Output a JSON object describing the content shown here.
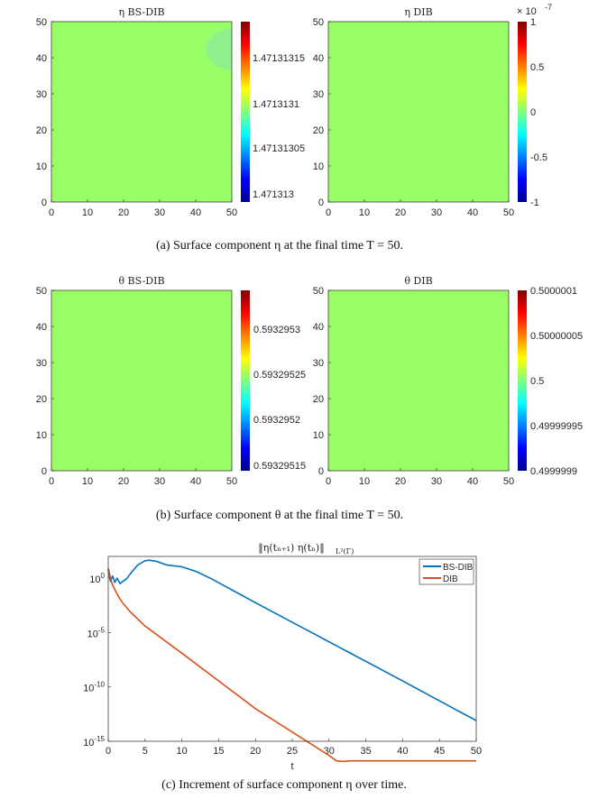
{
  "colors": {
    "field": "#99ff66",
    "field_patch": "#8ef08a",
    "bsdib_line": "#0072bd",
    "dib_line": "#d95319",
    "grid_text": "#262626"
  },
  "panel_a": {
    "caption": "(a)  Surface component η at the final time T = 50.",
    "left": {
      "title": "η BS-DIB",
      "colorbar_ticks": [
        "1.47131315",
        "1.4713131",
        "1.47131305",
        "1.471313"
      ]
    },
    "right": {
      "title": "η DIB",
      "exponent": "× 10",
      "exponent_power": "-7",
      "colorbar_ticks": [
        "1",
        "0.5",
        "0",
        "-0.5",
        "-1"
      ]
    }
  },
  "panel_b": {
    "caption": "(b)  Surface component θ at the final time T = 50.",
    "left": {
      "title": "θ BS-DIB",
      "colorbar_ticks": [
        "0.5932953",
        "0.59329525",
        "0.5932952",
        "0.59329515"
      ]
    },
    "right": {
      "title": "θ DIB",
      "colorbar_ticks": [
        "0.5000001",
        "0.50000005",
        "0.5",
        "0.49999995",
        "0.4999999"
      ]
    }
  },
  "field_axis_ticks": [
    "0",
    "10",
    "20",
    "30",
    "40",
    "50"
  ],
  "panel_c": {
    "caption": "(c)  Increment of surface component η over time."
  },
  "chart_data": [
    {
      "type": "heatmap",
      "title": "η BS-DIB",
      "xlim": [
        0,
        50
      ],
      "ylim": [
        0,
        50
      ],
      "xticks": [
        0,
        10,
        20,
        30,
        40,
        50
      ],
      "yticks": [
        0,
        10,
        20,
        30,
        40,
        50
      ],
      "colorbar": {
        "ticks": [
          1.47131315,
          1.4713131,
          1.47131305,
          1.471313
        ]
      },
      "description_values": "nearly uniform field; slightly lower region near x=50, y=42"
    },
    {
      "type": "heatmap",
      "title": "η DIB",
      "xlim": [
        0,
        50
      ],
      "ylim": [
        0,
        50
      ],
      "xticks": [
        0,
        10,
        20,
        30,
        40,
        50
      ],
      "yticks": [
        0,
        10,
        20,
        30,
        40,
        50
      ],
      "colorbar": {
        "ticks": [
          1,
          0.5,
          0,
          -0.5,
          -1
        ],
        "scale_exponent": -7
      }
    },
    {
      "type": "heatmap",
      "title": "θ BS-DIB",
      "xlim": [
        0,
        50
      ],
      "ylim": [
        0,
        50
      ],
      "xticks": [
        0,
        10,
        20,
        30,
        40,
        50
      ],
      "yticks": [
        0,
        10,
        20,
        30,
        40,
        50
      ],
      "colorbar": {
        "ticks": [
          0.5932953,
          0.59329525,
          0.5932952,
          0.59329515
        ]
      }
    },
    {
      "type": "heatmap",
      "title": "θ DIB",
      "xlim": [
        0,
        50
      ],
      "ylim": [
        0,
        50
      ],
      "xticks": [
        0,
        10,
        20,
        30,
        40,
        50
      ],
      "yticks": [
        0,
        10,
        20,
        30,
        40,
        50
      ],
      "colorbar": {
        "ticks": [
          0.5000001,
          0.50000005,
          0.5,
          0.49999995,
          0.4999999
        ]
      }
    },
    {
      "type": "line",
      "title": "‖η(tₙ₊₁)    η(tₙ)‖",
      "title_sub": "L²(Γ)",
      "xlabel": "t",
      "ylabel": "",
      "xlim": [
        0,
        50
      ],
      "ylim_log10": [
        -15,
        2
      ],
      "xticks": [
        "0",
        "5",
        "10",
        "15",
        "20",
        "25",
        "30",
        "35",
        "40",
        "45",
        "50"
      ],
      "yticks": [
        {
          "base": "10",
          "exp": "0",
          "value": 0
        },
        {
          "base": "10",
          "exp": "-5",
          "value": -5
        },
        {
          "base": "10",
          "exp": "-10",
          "value": -10
        },
        {
          "base": "10",
          "exp": "-15",
          "value": -15
        }
      ],
      "legend_position": "top-right",
      "series": [
        {
          "name": "BS-DIB",
          "t": [
            0,
            0.3,
            0.6,
            0.9,
            1.2,
            1.6,
            2,
            2.5,
            3,
            4,
            5,
            5.6,
            6.5,
            8,
            10,
            12,
            14,
            20,
            30,
            40,
            50
          ],
          "log10_values": [
            0.8,
            -0.3,
            0.2,
            -0.4,
            0,
            -0.5,
            -0.3,
            -0.05,
            0.4,
            1.2,
            1.6,
            1.65,
            1.55,
            1.2,
            1.05,
            0.6,
            -0.05,
            -2.25,
            -5.85,
            -9.45,
            -13.1
          ]
        },
        {
          "name": "DIB",
          "t": [
            0,
            0.5,
            1,
            1.5,
            2,
            3,
            5,
            10,
            20,
            30,
            31,
            32,
            33,
            35,
            40,
            45,
            50
          ],
          "log10_values": [
            0.9,
            -0.5,
            -1.2,
            -1.8,
            -2.3,
            -3.1,
            -4.4,
            -6.9,
            -12,
            -16.3,
            -16.8,
            -16.85,
            -16.8,
            -16.8,
            -16.8,
            -16.8,
            -16.8
          ]
        }
      ]
    }
  ]
}
